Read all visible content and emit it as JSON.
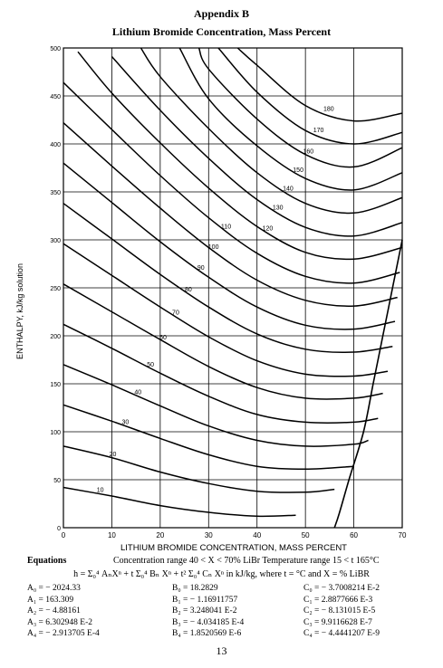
{
  "page": {
    "heading": "Appendix B",
    "subheading": "Lithium Bromide Concentration, Mass Percent",
    "page_number": "13"
  },
  "chart_data": {
    "type": "line",
    "title": "",
    "xlabel": "LITHIUM BROMIDE CONCENTRATION, MASS PERCENT",
    "ylabel": "ENTHALPY, kJ/kg solution",
    "xlim": [
      0,
      70
    ],
    "ylim": [
      0,
      500
    ],
    "x_ticks": [
      "0",
      "10",
      "20",
      "30",
      "40",
      "50",
      "60",
      "70"
    ],
    "y_ticks": [
      "0",
      "50",
      "100",
      "150",
      "200",
      "250",
      "300",
      "350",
      "400",
      "450",
      "500"
    ],
    "grid": true,
    "series": [
      {
        "name": "10",
        "points": [
          [
            0,
            42
          ],
          [
            10,
            33
          ],
          [
            20,
            23
          ],
          [
            30,
            16
          ],
          [
            40,
            12
          ],
          [
            48,
            13
          ]
        ]
      },
      {
        "name": "20",
        "points": [
          [
            0,
            85
          ],
          [
            10,
            73
          ],
          [
            20,
            58
          ],
          [
            30,
            46
          ],
          [
            40,
            38
          ],
          [
            50,
            37
          ],
          [
            56,
            40
          ]
        ]
      },
      {
        "name": "30",
        "points": [
          [
            0,
            128
          ],
          [
            10,
            111
          ],
          [
            20,
            93
          ],
          [
            30,
            76
          ],
          [
            40,
            64
          ],
          [
            50,
            61
          ],
          [
            60,
            64
          ]
        ]
      },
      {
        "name": "40",
        "points": [
          [
            0,
            170
          ],
          [
            10,
            149
          ],
          [
            20,
            127
          ],
          [
            30,
            106
          ],
          [
            40,
            91
          ],
          [
            50,
            85
          ],
          [
            60,
            87
          ],
          [
            63,
            91
          ]
        ]
      },
      {
        "name": "50",
        "points": [
          [
            0,
            212
          ],
          [
            10,
            187
          ],
          [
            20,
            161
          ],
          [
            30,
            137
          ],
          [
            40,
            118
          ],
          [
            50,
            110
          ],
          [
            60,
            110
          ],
          [
            65,
            114
          ]
        ]
      },
      {
        "name": "60",
        "points": [
          [
            0,
            254
          ],
          [
            10,
            225
          ],
          [
            20,
            196
          ],
          [
            30,
            168
          ],
          [
            40,
            146
          ],
          [
            50,
            135
          ],
          [
            60,
            135
          ],
          [
            66,
            140
          ]
        ]
      },
      {
        "name": "70",
        "points": [
          [
            0,
            296
          ],
          [
            10,
            263
          ],
          [
            20,
            230
          ],
          [
            30,
            199
          ],
          [
            40,
            174
          ],
          [
            50,
            160
          ],
          [
            60,
            158
          ],
          [
            67,
            163
          ]
        ]
      },
      {
        "name": "80",
        "points": [
          [
            0,
            338
          ],
          [
            10,
            301
          ],
          [
            20,
            264
          ],
          [
            30,
            230
          ],
          [
            40,
            202
          ],
          [
            50,
            186
          ],
          [
            60,
            183
          ],
          [
            68,
            189
          ]
        ]
      },
      {
        "name": "90",
        "points": [
          [
            0,
            380
          ],
          [
            10,
            339
          ],
          [
            20,
            298
          ],
          [
            30,
            261
          ],
          [
            40,
            230
          ],
          [
            50,
            211
          ],
          [
            60,
            207
          ],
          [
            68.5,
            215
          ]
        ]
      },
      {
        "name": "100",
        "points": [
          [
            0,
            422
          ],
          [
            10,
            377
          ],
          [
            20,
            333
          ],
          [
            30,
            292
          ],
          [
            40,
            258
          ],
          [
            50,
            237
          ],
          [
            60,
            231
          ],
          [
            69,
            240
          ]
        ]
      },
      {
        "name": "110",
        "points": [
          [
            0,
            464
          ],
          [
            10,
            415
          ],
          [
            20,
            367
          ],
          [
            30,
            323
          ],
          [
            40,
            286
          ],
          [
            50,
            262
          ],
          [
            60,
            255
          ],
          [
            69.5,
            266
          ]
        ]
      },
      {
        "name": "120",
        "points": [
          [
            3,
            496
          ],
          [
            10,
            453
          ],
          [
            20,
            401
          ],
          [
            30,
            354
          ],
          [
            40,
            314
          ],
          [
            50,
            287
          ],
          [
            60,
            280
          ],
          [
            70,
            292
          ]
        ]
      },
      {
        "name": "130",
        "points": [
          [
            10,
            491
          ],
          [
            20,
            435
          ],
          [
            30,
            385
          ],
          [
            40,
            342
          ],
          [
            50,
            313
          ],
          [
            60,
            304
          ],
          [
            70,
            318
          ]
        ]
      },
      {
        "name": "140",
        "points": [
          [
            16,
            500
          ],
          [
            20,
            470
          ],
          [
            30,
            416
          ],
          [
            40,
            370
          ],
          [
            50,
            338
          ],
          [
            60,
            328
          ],
          [
            70,
            344
          ]
        ]
      },
      {
        "name": "150",
        "points": [
          [
            24,
            500
          ],
          [
            30,
            447
          ],
          [
            40,
            398
          ],
          [
            50,
            364
          ],
          [
            60,
            352
          ],
          [
            70,
            370
          ]
        ]
      },
      {
        "name": "160",
        "points": [
          [
            28,
            500
          ],
          [
            30,
            478
          ],
          [
            40,
            426
          ],
          [
            50,
            389
          ],
          [
            60,
            376
          ],
          [
            70,
            396
          ]
        ]
      },
      {
        "name": "170",
        "points": [
          [
            32,
            500
          ],
          [
            40,
            454
          ],
          [
            50,
            414
          ],
          [
            60,
            400
          ],
          [
            70,
            412
          ]
        ]
      },
      {
        "name": "180",
        "points": [
          [
            36,
            500
          ],
          [
            40,
            482
          ],
          [
            50,
            440
          ],
          [
            60,
            424
          ],
          [
            70,
            432
          ]
        ]
      }
    ],
    "saturation_boundary": [
      [
        56,
        0
      ],
      [
        57,
        15
      ],
      [
        59,
        50
      ],
      [
        62,
        100
      ],
      [
        64,
        150
      ],
      [
        66,
        200
      ],
      [
        68,
        250
      ],
      [
        70,
        300
      ]
    ]
  },
  "equations": {
    "label": "Equations",
    "range_text": "Concentration range 40 < X < 70% LiBr    Temperature range 15 < t 165°C",
    "formula": "h = Σ₀⁴ AₙXⁿ + t Σ₀⁴ Bₙ Xⁿ + t² Σ₀⁴ Cₙ Xⁿ in kJ/kg, where t = °C and X = % LiBR",
    "A": [
      "A₀ = − 2024.33",
      "A₁ = 163.309",
      "A₂ = − 4.88161",
      "A₃ = 6.302948 E-2",
      "A₄ = − 2.913705 E-4"
    ],
    "B": [
      "B₀ = 18.2829",
      "B₁ = − 1.16911757",
      "B₂ = 3.248041 E-2",
      "B₃ = − 4.034185 E-4",
      "B₄ = 1.8520569 E-6"
    ],
    "C": [
      "C₀ = − 3.7008214 E-2",
      "C₁ = 2.8877666 E-3",
      "C₂ = − 8.131015 E-5",
      "C₃ = 9.9116628 E-7",
      "C₄ = − 4.4441207 E-9"
    ]
  }
}
